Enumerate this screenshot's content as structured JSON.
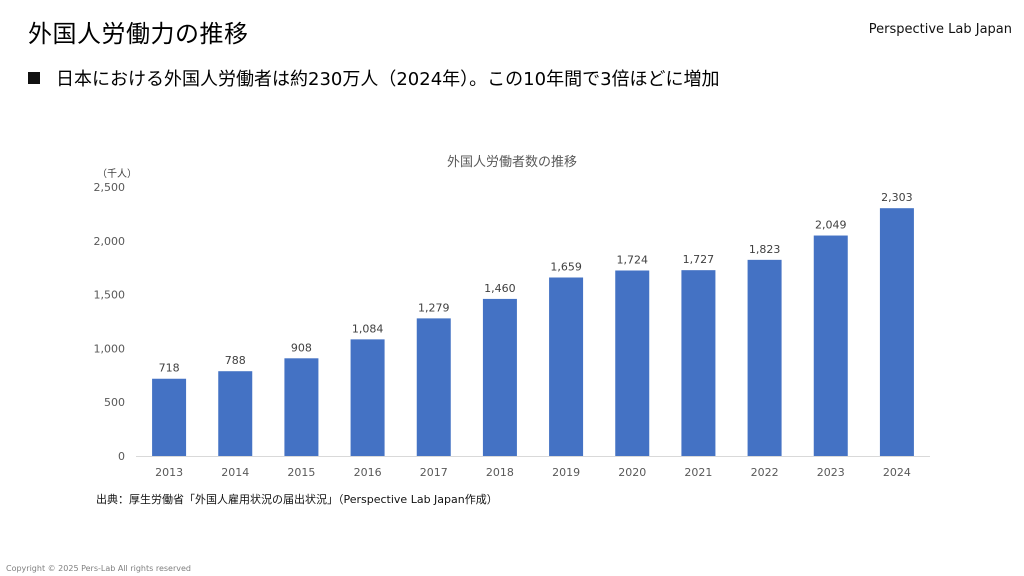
{
  "header": {
    "title": "外国人労働力の推移",
    "brand": "Perspective Lab Japan"
  },
  "bullet": {
    "text": "日本における外国人労働者は約230万人（2024年）。この10年間で3倍ほどに増加"
  },
  "footer": {
    "source": "出典：厚生労働省「外国人雇用状況の届出状況」（Perspective Lab Japan作成）",
    "copyright": "Copyright © 2025 Pers-Lab All rights reserved"
  },
  "chart_data": {
    "type": "bar",
    "title": "外国人労働者数の推移",
    "unit_label": "（千人）",
    "xlabel": "",
    "ylabel": "",
    "categories": [
      "2013",
      "2014",
      "2015",
      "2016",
      "2017",
      "2018",
      "2019",
      "2020",
      "2021",
      "2022",
      "2023",
      "2024"
    ],
    "values": [
      718,
      788,
      908,
      1084,
      1279,
      1460,
      1659,
      1724,
      1727,
      1823,
      2049,
      2303
    ],
    "data_labels": [
      "718",
      "788",
      "908",
      "1,084",
      "1,279",
      "1,460",
      "1,659",
      "1,724",
      "1,727",
      "1,823",
      "2,049",
      "2,303"
    ],
    "ylim": [
      0,
      2500
    ],
    "yticks": [
      0,
      500,
      1000,
      1500,
      2000,
      2500
    ],
    "ytick_labels": [
      "0",
      "500",
      "1,000",
      "1,500",
      "2,000",
      "2,500"
    ],
    "grid": false,
    "legend": "none",
    "bar_color": "#4472C4"
  }
}
